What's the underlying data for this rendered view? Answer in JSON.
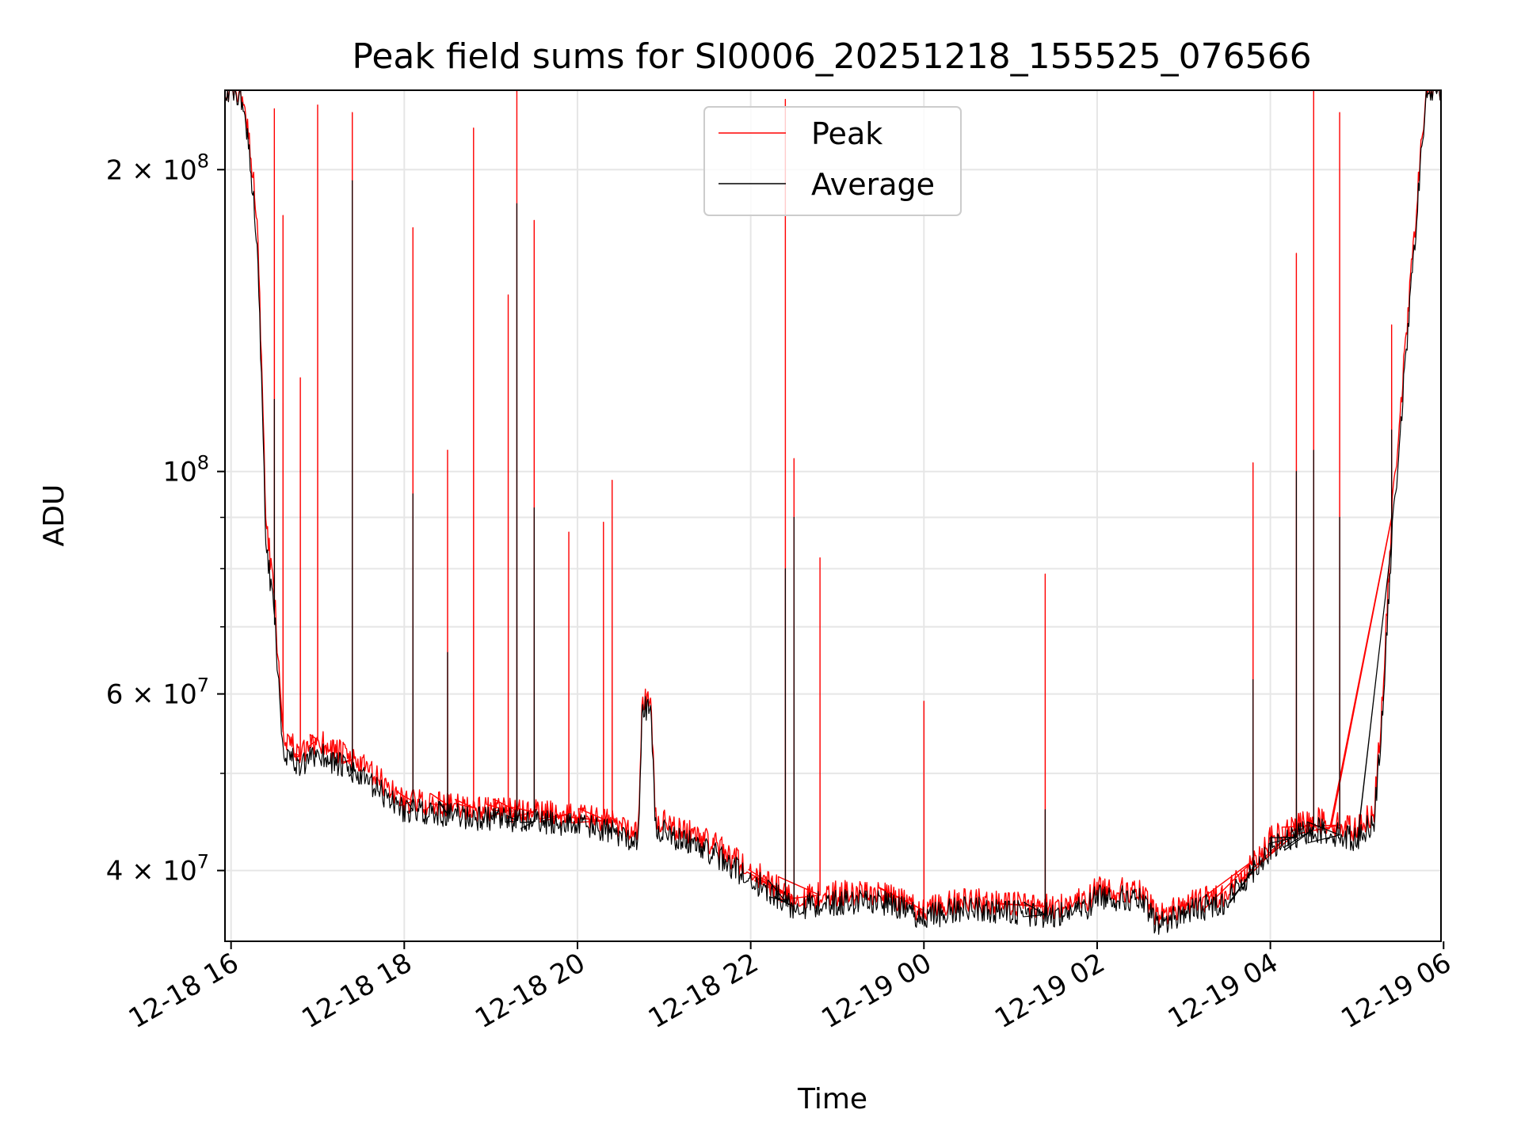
{
  "chart_data": {
    "type": "line",
    "title": "Peak field sums for SI0006_20251218_155525_076566",
    "xlabel": "Time",
    "ylabel": "ADU",
    "yscale": "log",
    "ylim": [
      34000000,
      240000000
    ],
    "xlim_hours": [
      15.93,
      29.97
    ],
    "x_units": "hours since 12-18 00:00",
    "grid": true,
    "legend_position": "upper center",
    "x_ticks": [
      {
        "hour": 16,
        "label": "12-18 16"
      },
      {
        "hour": 18,
        "label": "12-18 18"
      },
      {
        "hour": 20,
        "label": "12-18 20"
      },
      {
        "hour": 22,
        "label": "12-18 22"
      },
      {
        "hour": 24,
        "label": "12-19 00"
      },
      {
        "hour": 26,
        "label": "12-19 02"
      },
      {
        "hour": 28,
        "label": "12-19 04"
      },
      {
        "hour": 30,
        "label": "12-19 06"
      }
    ],
    "y_ticks": [
      {
        "value": 40000000,
        "mantissa": "4 × 10",
        "exp": "7"
      },
      {
        "value": 60000000,
        "mantissa": "6 × 10",
        "exp": "7"
      },
      {
        "value": 100000000,
        "mantissa": "10",
        "exp": "8"
      },
      {
        "value": 200000000,
        "mantissa": "2 × 10",
        "exp": "8"
      }
    ],
    "y_minor_ticks": [
      50000000,
      70000000,
      80000000,
      90000000,
      300000000
    ],
    "series": [
      {
        "name": "Peak",
        "color": "#ff0000",
        "baseline": [
          [
            15.93,
            240000000
          ],
          [
            16.1,
            240000000
          ],
          [
            16.2,
            220000000
          ],
          [
            16.3,
            180000000
          ],
          [
            16.35,
            130000000
          ],
          [
            16.4,
            90000000
          ],
          [
            16.5,
            75000000
          ],
          [
            16.6,
            55000000
          ],
          [
            16.8,
            52000000
          ],
          [
            17.0,
            54000000
          ],
          [
            17.5,
            51000000
          ],
          [
            18.0,
            47000000
          ],
          [
            19.0,
            46000000
          ],
          [
            20.0,
            45500000
          ],
          [
            20.7,
            44000000
          ],
          [
            20.75,
            59000000
          ],
          [
            20.85,
            59000000
          ],
          [
            20.9,
            45000000
          ],
          [
            21.5,
            43000000
          ],
          [
            22.0,
            40000000
          ],
          [
            22.5,
            37500000
          ],
          [
            23.0,
            38000000
          ],
          [
            23.5,
            38000000
          ],
          [
            24.0,
            36500000
          ],
          [
            24.5,
            37500000
          ],
          [
            25.0,
            37000000
          ],
          [
            25.5,
            36800000
          ],
          [
            25.9,
            37500000
          ],
          [
            26.0,
            38500000
          ],
          [
            26.5,
            38000000
          ],
          [
            26.7,
            36000000
          ],
          [
            27.0,
            37000000
          ],
          [
            27.5,
            38000000
          ],
          [
            28.0,
            43000000
          ],
          [
            28.5,
            45000000
          ],
          [
            29.0,
            44000000
          ],
          [
            29.2,
            46000000
          ],
          [
            29.3,
            60000000
          ],
          [
            29.4,
            90000000
          ],
          [
            29.55,
            130000000
          ],
          [
            29.7,
            190000000
          ],
          [
            29.8,
            240000000
          ],
          [
            29.97,
            240000000
          ]
        ],
        "spikes": [
          [
            16.5,
            230000000
          ],
          [
            16.6,
            180000000
          ],
          [
            16.8,
            124000000
          ],
          [
            17.0,
            232000000
          ],
          [
            17.4,
            228000000
          ],
          [
            18.1,
            175000000
          ],
          [
            18.5,
            105000000
          ],
          [
            18.8,
            220000000
          ],
          [
            19.2,
            150000000
          ],
          [
            19.3,
            240000000
          ],
          [
            19.5,
            178000000
          ],
          [
            19.9,
            87000000
          ],
          [
            20.3,
            89000000
          ],
          [
            20.4,
            98000000
          ],
          [
            22.4,
            235000000
          ],
          [
            22.5,
            103000000
          ],
          [
            22.8,
            82000000
          ],
          [
            24.0,
            59000000
          ],
          [
            25.4,
            79000000
          ],
          [
            27.8,
            102000000
          ],
          [
            28.3,
            165000000
          ],
          [
            28.5,
            240000000
          ],
          [
            28.8,
            228000000
          ],
          [
            29.4,
            140000000
          ]
        ]
      },
      {
        "name": "Average",
        "color": "#000000",
        "baseline": [
          [
            15.93,
            240000000
          ],
          [
            16.1,
            238000000
          ],
          [
            16.2,
            215000000
          ],
          [
            16.3,
            170000000
          ],
          [
            16.35,
            125000000
          ],
          [
            16.4,
            85000000
          ],
          [
            16.5,
            72000000
          ],
          [
            16.6,
            53000000
          ],
          [
            16.8,
            50500000
          ],
          [
            17.0,
            52500000
          ],
          [
            17.5,
            49500000
          ],
          [
            18.0,
            46000000
          ],
          [
            19.0,
            45000000
          ],
          [
            20.0,
            44500000
          ],
          [
            20.7,
            43000000
          ],
          [
            20.75,
            58000000
          ],
          [
            20.85,
            58000000
          ],
          [
            20.9,
            44000000
          ],
          [
            21.5,
            42000000
          ],
          [
            22.0,
            39200000
          ],
          [
            22.5,
            36800000
          ],
          [
            23.0,
            37200000
          ],
          [
            23.5,
            37300000
          ],
          [
            24.0,
            35900000
          ],
          [
            24.5,
            36800000
          ],
          [
            25.0,
            36300000
          ],
          [
            25.5,
            36100000
          ],
          [
            25.9,
            36800000
          ],
          [
            26.0,
            37800000
          ],
          [
            26.5,
            37300000
          ],
          [
            26.7,
            35300000
          ],
          [
            27.0,
            36300000
          ],
          [
            27.5,
            37300000
          ],
          [
            28.0,
            42000000
          ],
          [
            28.5,
            44000000
          ],
          [
            29.0,
            43000000
          ],
          [
            29.2,
            45000000
          ],
          [
            29.3,
            58000000
          ],
          [
            29.4,
            85000000
          ],
          [
            29.55,
            125000000
          ],
          [
            29.7,
            185000000
          ],
          [
            29.8,
            238000000
          ],
          [
            29.97,
            240000000
          ]
        ],
        "spikes": [
          [
            16.5,
            118000000
          ],
          [
            17.4,
            195000000
          ],
          [
            18.1,
            95000000
          ],
          [
            18.5,
            66000000
          ],
          [
            19.3,
            185000000
          ],
          [
            19.5,
            92000000
          ],
          [
            22.4,
            80000000
          ],
          [
            22.5,
            90000000
          ],
          [
            25.4,
            46000000
          ],
          [
            27.8,
            62000000
          ],
          [
            28.3,
            100000000
          ],
          [
            28.5,
            105000000
          ],
          [
            28.8,
            90000000
          ],
          [
            29.4,
            110000000
          ]
        ]
      }
    ]
  }
}
